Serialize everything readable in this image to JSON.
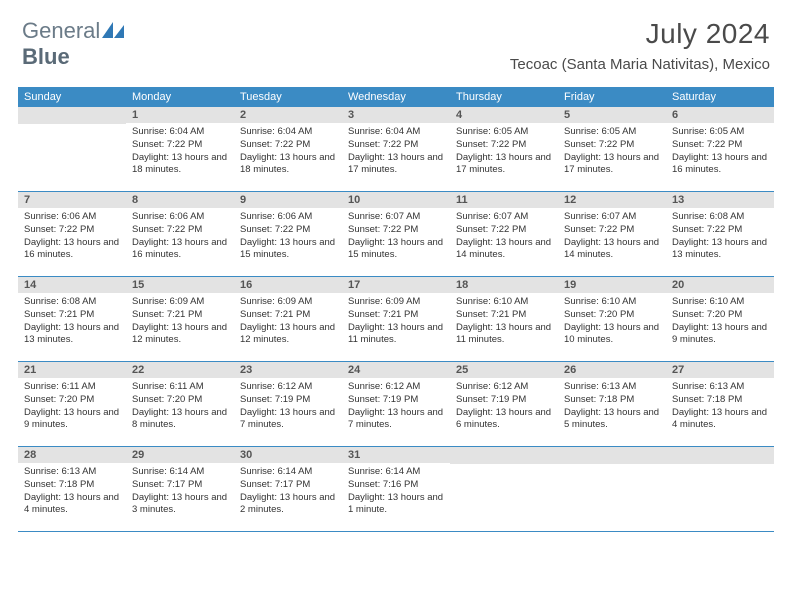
{
  "brand": {
    "part1": "General",
    "part2": "Blue"
  },
  "title": "July 2024",
  "location": "Tecoac (Santa Maria Nativitas), Mexico",
  "colors": {
    "header_bg": "#3b8bc4",
    "daynum_bg": "#e3e3e3",
    "rule": "#3b8bc4",
    "text": "#333333",
    "title_text": "#4a4a4a",
    "logo_gray": "#6b7b88",
    "logo_blue": "#2f78b5"
  },
  "dow": [
    "Sunday",
    "Monday",
    "Tuesday",
    "Wednesday",
    "Thursday",
    "Friday",
    "Saturday"
  ],
  "weeks": [
    [
      {
        "n": "",
        "sunrise": "",
        "sunset": "",
        "daylight": ""
      },
      {
        "n": "1",
        "sunrise": "Sunrise: 6:04 AM",
        "sunset": "Sunset: 7:22 PM",
        "daylight": "Daylight: 13 hours and 18 minutes."
      },
      {
        "n": "2",
        "sunrise": "Sunrise: 6:04 AM",
        "sunset": "Sunset: 7:22 PM",
        "daylight": "Daylight: 13 hours and 18 minutes."
      },
      {
        "n": "3",
        "sunrise": "Sunrise: 6:04 AM",
        "sunset": "Sunset: 7:22 PM",
        "daylight": "Daylight: 13 hours and 17 minutes."
      },
      {
        "n": "4",
        "sunrise": "Sunrise: 6:05 AM",
        "sunset": "Sunset: 7:22 PM",
        "daylight": "Daylight: 13 hours and 17 minutes."
      },
      {
        "n": "5",
        "sunrise": "Sunrise: 6:05 AM",
        "sunset": "Sunset: 7:22 PM",
        "daylight": "Daylight: 13 hours and 17 minutes."
      },
      {
        "n": "6",
        "sunrise": "Sunrise: 6:05 AM",
        "sunset": "Sunset: 7:22 PM",
        "daylight": "Daylight: 13 hours and 16 minutes."
      }
    ],
    [
      {
        "n": "7",
        "sunrise": "Sunrise: 6:06 AM",
        "sunset": "Sunset: 7:22 PM",
        "daylight": "Daylight: 13 hours and 16 minutes."
      },
      {
        "n": "8",
        "sunrise": "Sunrise: 6:06 AM",
        "sunset": "Sunset: 7:22 PM",
        "daylight": "Daylight: 13 hours and 16 minutes."
      },
      {
        "n": "9",
        "sunrise": "Sunrise: 6:06 AM",
        "sunset": "Sunset: 7:22 PM",
        "daylight": "Daylight: 13 hours and 15 minutes."
      },
      {
        "n": "10",
        "sunrise": "Sunrise: 6:07 AM",
        "sunset": "Sunset: 7:22 PM",
        "daylight": "Daylight: 13 hours and 15 minutes."
      },
      {
        "n": "11",
        "sunrise": "Sunrise: 6:07 AM",
        "sunset": "Sunset: 7:22 PM",
        "daylight": "Daylight: 13 hours and 14 minutes."
      },
      {
        "n": "12",
        "sunrise": "Sunrise: 6:07 AM",
        "sunset": "Sunset: 7:22 PM",
        "daylight": "Daylight: 13 hours and 14 minutes."
      },
      {
        "n": "13",
        "sunrise": "Sunrise: 6:08 AM",
        "sunset": "Sunset: 7:22 PM",
        "daylight": "Daylight: 13 hours and 13 minutes."
      }
    ],
    [
      {
        "n": "14",
        "sunrise": "Sunrise: 6:08 AM",
        "sunset": "Sunset: 7:21 PM",
        "daylight": "Daylight: 13 hours and 13 minutes."
      },
      {
        "n": "15",
        "sunrise": "Sunrise: 6:09 AM",
        "sunset": "Sunset: 7:21 PM",
        "daylight": "Daylight: 13 hours and 12 minutes."
      },
      {
        "n": "16",
        "sunrise": "Sunrise: 6:09 AM",
        "sunset": "Sunset: 7:21 PM",
        "daylight": "Daylight: 13 hours and 12 minutes."
      },
      {
        "n": "17",
        "sunrise": "Sunrise: 6:09 AM",
        "sunset": "Sunset: 7:21 PM",
        "daylight": "Daylight: 13 hours and 11 minutes."
      },
      {
        "n": "18",
        "sunrise": "Sunrise: 6:10 AM",
        "sunset": "Sunset: 7:21 PM",
        "daylight": "Daylight: 13 hours and 11 minutes."
      },
      {
        "n": "19",
        "sunrise": "Sunrise: 6:10 AM",
        "sunset": "Sunset: 7:20 PM",
        "daylight": "Daylight: 13 hours and 10 minutes."
      },
      {
        "n": "20",
        "sunrise": "Sunrise: 6:10 AM",
        "sunset": "Sunset: 7:20 PM",
        "daylight": "Daylight: 13 hours and 9 minutes."
      }
    ],
    [
      {
        "n": "21",
        "sunrise": "Sunrise: 6:11 AM",
        "sunset": "Sunset: 7:20 PM",
        "daylight": "Daylight: 13 hours and 9 minutes."
      },
      {
        "n": "22",
        "sunrise": "Sunrise: 6:11 AM",
        "sunset": "Sunset: 7:20 PM",
        "daylight": "Daylight: 13 hours and 8 minutes."
      },
      {
        "n": "23",
        "sunrise": "Sunrise: 6:12 AM",
        "sunset": "Sunset: 7:19 PM",
        "daylight": "Daylight: 13 hours and 7 minutes."
      },
      {
        "n": "24",
        "sunrise": "Sunrise: 6:12 AM",
        "sunset": "Sunset: 7:19 PM",
        "daylight": "Daylight: 13 hours and 7 minutes."
      },
      {
        "n": "25",
        "sunrise": "Sunrise: 6:12 AM",
        "sunset": "Sunset: 7:19 PM",
        "daylight": "Daylight: 13 hours and 6 minutes."
      },
      {
        "n": "26",
        "sunrise": "Sunrise: 6:13 AM",
        "sunset": "Sunset: 7:18 PM",
        "daylight": "Daylight: 13 hours and 5 minutes."
      },
      {
        "n": "27",
        "sunrise": "Sunrise: 6:13 AM",
        "sunset": "Sunset: 7:18 PM",
        "daylight": "Daylight: 13 hours and 4 minutes."
      }
    ],
    [
      {
        "n": "28",
        "sunrise": "Sunrise: 6:13 AM",
        "sunset": "Sunset: 7:18 PM",
        "daylight": "Daylight: 13 hours and 4 minutes."
      },
      {
        "n": "29",
        "sunrise": "Sunrise: 6:14 AM",
        "sunset": "Sunset: 7:17 PM",
        "daylight": "Daylight: 13 hours and 3 minutes."
      },
      {
        "n": "30",
        "sunrise": "Sunrise: 6:14 AM",
        "sunset": "Sunset: 7:17 PM",
        "daylight": "Daylight: 13 hours and 2 minutes."
      },
      {
        "n": "31",
        "sunrise": "Sunrise: 6:14 AM",
        "sunset": "Sunset: 7:16 PM",
        "daylight": "Daylight: 13 hours and 1 minute."
      },
      {
        "n": "",
        "sunrise": "",
        "sunset": "",
        "daylight": ""
      },
      {
        "n": "",
        "sunrise": "",
        "sunset": "",
        "daylight": ""
      },
      {
        "n": "",
        "sunrise": "",
        "sunset": "",
        "daylight": ""
      }
    ]
  ]
}
